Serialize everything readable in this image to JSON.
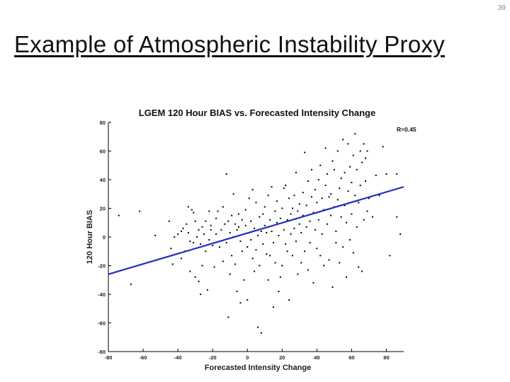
{
  "slide": {
    "number": "39",
    "title": "Example of Atmospheric Instability Proxy"
  },
  "chart_data": {
    "type": "scatter",
    "title": "LGEM 120 Hour BIAS vs. Forecasted Intensity Change",
    "xlabel": "Forecasted Intensity Change",
    "ylabel": "120 Hour BIAS",
    "xlim": [
      -80,
      90
    ],
    "ylim": [
      -80,
      80
    ],
    "xticks": [
      -80,
      -60,
      -40,
      -20,
      0,
      20,
      40,
      60,
      80
    ],
    "yticks": [
      -80,
      -60,
      -40,
      -20,
      0,
      20,
      40,
      60,
      80
    ],
    "grid": false,
    "annotation": "R=0.45",
    "colors": {
      "points": "#000000",
      "fit_line": "#1f2fbf"
    },
    "fit_line": {
      "x": [
        -80,
        90
      ],
      "y": [
        -26,
        35
      ]
    },
    "series": [
      {
        "points": [
          [
            -74,
            15
          ],
          [
            -67,
            -33
          ],
          [
            -62,
            18
          ],
          [
            -53,
            1
          ],
          [
            -45,
            11
          ],
          [
            -44,
            -8
          ],
          [
            -43,
            -19
          ],
          [
            -42,
            0
          ],
          [
            -40,
            2
          ],
          [
            -38,
            4
          ],
          [
            -38,
            -15
          ],
          [
            -37,
            6
          ],
          [
            -36,
            -10
          ],
          [
            -35,
            9
          ],
          [
            -34,
            3
          ],
          [
            -34,
            21
          ],
          [
            -33,
            -3
          ],
          [
            -33,
            -24
          ],
          [
            -32,
            19
          ],
          [
            -31,
            17
          ],
          [
            -31,
            -4
          ],
          [
            -30,
            11
          ],
          [
            -30,
            -28
          ],
          [
            -29,
            0
          ],
          [
            -28,
            5
          ],
          [
            -28,
            -31
          ],
          [
            -27,
            -5
          ],
          [
            -27,
            -40
          ],
          [
            -26,
            7
          ],
          [
            -26,
            -20
          ],
          [
            -25,
            2
          ],
          [
            -24,
            11
          ],
          [
            -24,
            -10
          ],
          [
            -23,
            -37
          ],
          [
            -22,
            18
          ],
          [
            -22,
            -2
          ],
          [
            -21,
            8
          ],
          [
            -21,
            5
          ],
          [
            -20,
            -6
          ],
          [
            -19,
            -21
          ],
          [
            -18,
            13
          ],
          [
            -18,
            2
          ],
          [
            -17,
            18
          ],
          [
            -16,
            -7
          ],
          [
            -15,
            5
          ],
          [
            -14,
            -17
          ],
          [
            -14,
            21
          ],
          [
            -13,
            9
          ],
          [
            -12,
            -4
          ],
          [
            -12,
            44
          ],
          [
            -11,
            11
          ],
          [
            -11,
            -56
          ],
          [
            -10,
            3
          ],
          [
            -10,
            -26
          ],
          [
            -9,
            15
          ],
          [
            -9,
            -13
          ],
          [
            -8,
            0
          ],
          [
            -8,
            30
          ],
          [
            -7,
            -19
          ],
          [
            -7,
            9
          ],
          [
            -6,
            5
          ],
          [
            -6,
            -38
          ],
          [
            -5,
            7
          ],
          [
            -5,
            16
          ],
          [
            -4,
            -3
          ],
          [
            -4,
            -46
          ],
          [
            -3,
            12
          ],
          [
            -3,
            -10
          ],
          [
            -2,
            2
          ],
          [
            -2,
            -30
          ],
          [
            -1,
            19
          ],
          [
            -1,
            8
          ],
          [
            0,
            -7
          ],
          [
            0,
            -44
          ],
          [
            1,
            3
          ],
          [
            1,
            27
          ],
          [
            2,
            -2
          ],
          [
            2,
            11
          ],
          [
            3,
            -15
          ],
          [
            3,
            33
          ],
          [
            4,
            6
          ],
          [
            4,
            -24
          ],
          [
            5,
            -9
          ],
          [
            5,
            24
          ],
          [
            6,
            1
          ],
          [
            6,
            -63
          ],
          [
            7,
            14
          ],
          [
            7,
            -20
          ],
          [
            8,
            4
          ],
          [
            8,
            -67
          ],
          [
            9,
            16
          ],
          [
            9,
            -5
          ],
          [
            10,
            8
          ],
          [
            10,
            21
          ],
          [
            11,
            -12
          ],
          [
            11,
            3
          ],
          [
            12,
            29
          ],
          [
            12,
            -30
          ],
          [
            13,
            12
          ],
          [
            13,
            -13
          ],
          [
            14,
            4
          ],
          [
            14,
            35
          ],
          [
            15,
            -4
          ],
          [
            15,
            -49
          ],
          [
            16,
            18
          ],
          [
            16,
            -18
          ],
          [
            17,
            10
          ],
          [
            17,
            25
          ],
          [
            18,
            1
          ],
          [
            18,
            -38
          ],
          [
            19,
            13
          ],
          [
            19,
            -28
          ],
          [
            20,
            20
          ],
          [
            20,
            -20
          ],
          [
            21,
            34
          ],
          [
            21,
            5
          ],
          [
            22,
            -5
          ],
          [
            22,
            36
          ],
          [
            23,
            12
          ],
          [
            23,
            -10
          ],
          [
            24,
            -44
          ],
          [
            24,
            27
          ],
          [
            25,
            16
          ],
          [
            25,
            2
          ],
          [
            26,
            -13
          ],
          [
            26,
            20
          ],
          [
            27,
            29
          ],
          [
            27,
            6
          ],
          [
            28,
            -3
          ],
          [
            28,
            45
          ],
          [
            29,
            18
          ],
          [
            29,
            -26
          ],
          [
            30,
            9
          ],
          [
            30,
            23
          ],
          [
            31,
            -18
          ],
          [
            31,
            3
          ],
          [
            32,
            31
          ],
          [
            32,
            15
          ],
          [
            33,
            -10
          ],
          [
            33,
            59
          ],
          [
            34,
            22
          ],
          [
            34,
            7
          ],
          [
            35,
            -23
          ],
          [
            35,
            39
          ],
          [
            36,
            11
          ],
          [
            36,
            -4
          ],
          [
            37,
            28
          ],
          [
            37,
            47
          ],
          [
            38,
            17
          ],
          [
            38,
            -32
          ],
          [
            39,
            5
          ],
          [
            39,
            33
          ],
          [
            40,
            24
          ],
          [
            40,
            -8
          ],
          [
            41,
            40
          ],
          [
            41,
            12
          ],
          [
            42,
            -13
          ],
          [
            42,
            50
          ],
          [
            43,
            27
          ],
          [
            43,
            2
          ],
          [
            44,
            19
          ],
          [
            44,
            -20
          ],
          [
            45,
            36
          ],
          [
            45,
            62
          ],
          [
            46,
            9
          ],
          [
            46,
            44
          ],
          [
            47,
            -16
          ],
          [
            47,
            28
          ],
          [
            48,
            30
          ],
          [
            48,
            15
          ],
          [
            49,
            53
          ],
          [
            49,
            -35
          ],
          [
            50,
            21
          ],
          [
            50,
            47
          ],
          [
            51,
            4
          ],
          [
            51,
            -4
          ],
          [
            52,
            26
          ],
          [
            52,
            60
          ],
          [
            53,
            -18
          ],
          [
            53,
            34
          ],
          [
            54,
            41
          ],
          [
            54,
            14
          ],
          [
            55,
            -7
          ],
          [
            55,
            68
          ],
          [
            56,
            45
          ],
          [
            56,
            22
          ],
          [
            57,
            -28
          ],
          [
            57,
            10
          ],
          [
            58,
            32
          ],
          [
            58,
            65
          ],
          [
            59,
            -2
          ],
          [
            59,
            49
          ],
          [
            60,
            16
          ],
          [
            60,
            38
          ],
          [
            61,
            -11
          ],
          [
            61,
            57
          ],
          [
            62,
            29
          ],
          [
            62,
            72
          ],
          [
            63,
            7
          ],
          [
            63,
            47
          ],
          [
            64,
            -21
          ],
          [
            64,
            24
          ],
          [
            65,
            60
          ],
          [
            65,
            36
          ],
          [
            66,
            -24
          ],
          [
            66,
            52
          ],
          [
            67,
            65
          ],
          [
            67,
            12
          ],
          [
            68,
            55
          ],
          [
            68,
            39
          ],
          [
            69,
            18
          ],
          [
            69,
            60
          ],
          [
            70,
            27
          ],
          [
            72,
            14
          ],
          [
            74,
            43
          ],
          [
            76,
            29
          ],
          [
            78,
            63
          ],
          [
            80,
            44
          ],
          [
            82,
            -13
          ],
          [
            86,
            44
          ],
          [
            88,
            2
          ],
          [
            86,
            14
          ]
        ]
      }
    ]
  }
}
